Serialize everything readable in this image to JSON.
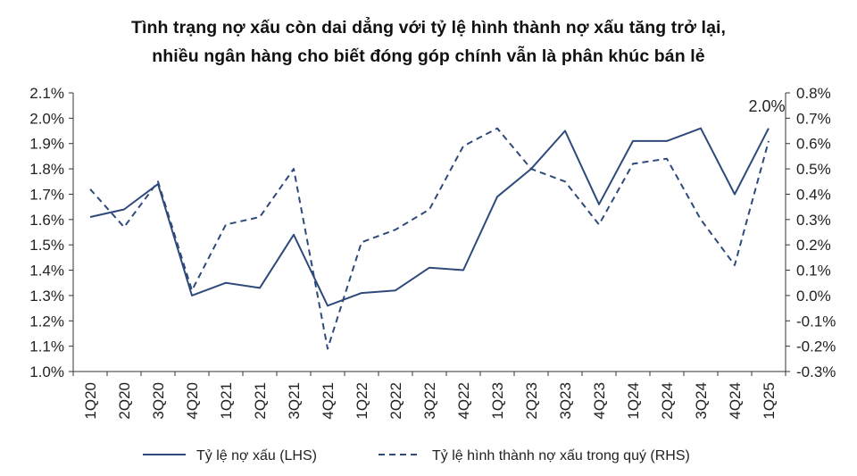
{
  "chart_data": {
    "type": "line",
    "title": "Tình trạng nợ xấu còn dai dẳng với tỷ lệ hình thành nợ xấu tăng trở lại,",
    "subtitle": "nhiều ngân hàng cho biết đóng góp chính vẫn là phân khúc bán lẻ",
    "categories": [
      "1Q20",
      "2Q20",
      "3Q20",
      "4Q20",
      "1Q21",
      "2Q21",
      "3Q21",
      "4Q21",
      "1Q22",
      "2Q22",
      "3Q22",
      "4Q22",
      "1Q23",
      "2Q23",
      "3Q23",
      "4Q23",
      "1Q24",
      "2Q24",
      "3Q24",
      "4Q24",
      "1Q25"
    ],
    "y_left": {
      "ylim": [
        1.0,
        2.1
      ],
      "ticks": [
        "1.0%",
        "1.1%",
        "1.2%",
        "1.3%",
        "1.4%",
        "1.5%",
        "1.6%",
        "1.7%",
        "1.8%",
        "1.9%",
        "2.0%",
        "2.1%"
      ]
    },
    "y_right": {
      "ylim": [
        -0.3,
        0.8
      ],
      "ticks": [
        "-0.3%",
        "-0.2%",
        "-0.1%",
        "0.0%",
        "0.1%",
        "0.2%",
        "0.3%",
        "0.4%",
        "0.5%",
        "0.6%",
        "0.7%",
        "0.8%"
      ],
      "negative_color": "#cc2222"
    },
    "series": [
      {
        "name": "Tỷ lệ nợ xấu (LHS)",
        "axis": "left",
        "style": "solid",
        "color": "#2e4a7a",
        "values": [
          1.61,
          1.64,
          1.74,
          1.3,
          1.35,
          1.33,
          1.54,
          1.26,
          1.31,
          1.32,
          1.41,
          1.4,
          1.69,
          1.8,
          1.95,
          1.66,
          1.91,
          1.91,
          1.96,
          1.7,
          1.96
        ]
      },
      {
        "name": "Tỷ lệ hình thành nợ xấu trong quý (RHS)",
        "axis": "right",
        "style": "dashed",
        "color": "#2e4a7a",
        "values": [
          0.42,
          0.27,
          0.45,
          0.02,
          0.28,
          0.31,
          0.5,
          -0.21,
          0.21,
          0.26,
          0.34,
          0.59,
          0.66,
          0.5,
          0.45,
          0.28,
          0.52,
          0.54,
          0.3,
          0.12,
          0.61
        ]
      }
    ],
    "annotations": [
      {
        "text": "2.0%",
        "category": "1Q25",
        "series": "Tỷ lệ nợ xấu (LHS)"
      }
    ],
    "legend_position": "bottom",
    "grid": false
  }
}
